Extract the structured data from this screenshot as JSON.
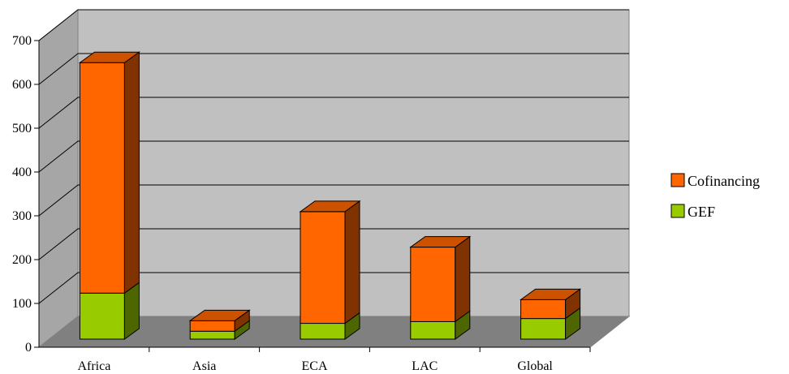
{
  "chart_data": {
    "type": "bar",
    "stacked": true,
    "three_d": true,
    "categories": [
      "Africa",
      "Asia",
      "ECA",
      "LAC",
      "Global"
    ],
    "series": [
      {
        "name": "GEF",
        "values": [
          105,
          18,
          36,
          40,
          47
        ],
        "color": "#99cc00"
      },
      {
        "name": "Cofinancing",
        "values": [
          526,
          24,
          255,
          170,
          43
        ],
        "color": "#ff6600"
      }
    ],
    "ylim": [
      0,
      700
    ],
    "yticks": [
      0,
      100,
      200,
      300,
      400,
      500,
      600,
      700
    ],
    "grid": true,
    "legend_position": "right",
    "legend": [
      {
        "name": "Cofinancing",
        "color": "#ff6600"
      },
      {
        "name": "GEF",
        "color": "#99cc00"
      }
    ]
  }
}
